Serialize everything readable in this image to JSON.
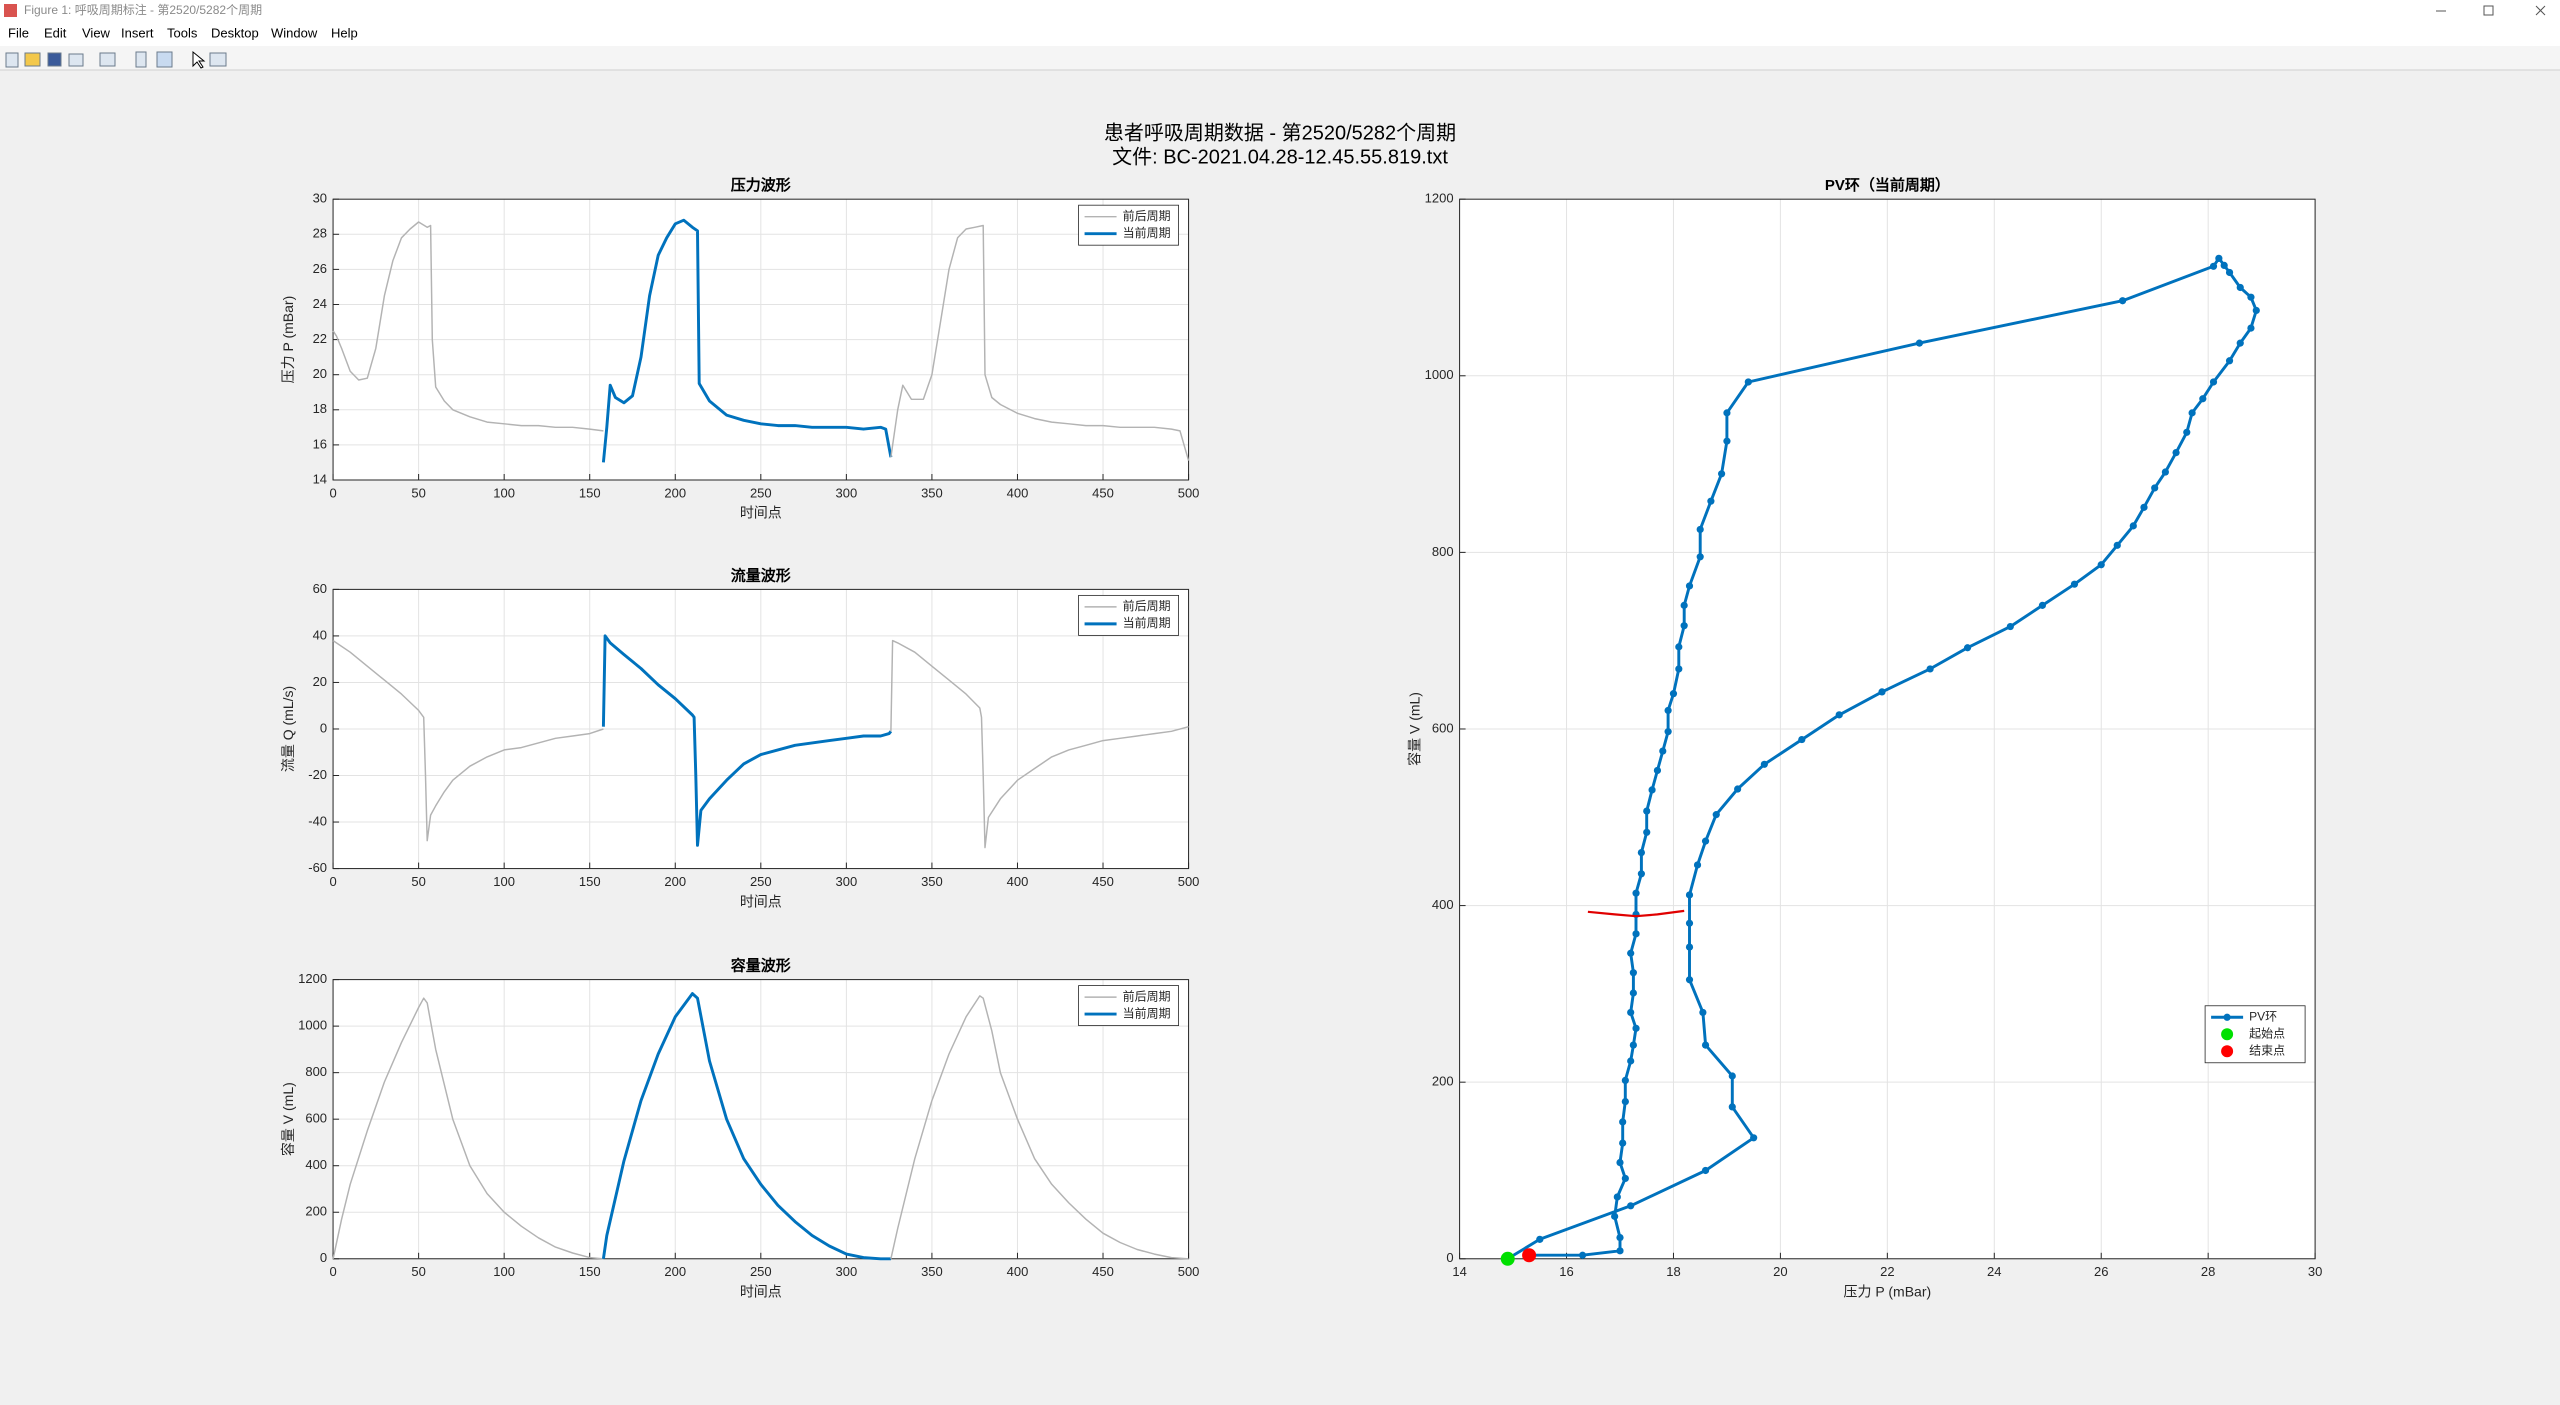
{
  "window": {
    "title": "Figure 1: 呼吸周期标注 - 第2520/5282个周期",
    "menu": [
      "File",
      "Edit",
      "View",
      "Insert",
      "Tools",
      "Desktop",
      "Window",
      "Help"
    ]
  },
  "figure_title": [
    "患者呼吸周期数据 - 第2520/5282个周期",
    "文件: BC-2021.04.28-12.45.55.819.txt"
  ],
  "chart_data": [
    {
      "type": "line",
      "title": "压力波形",
      "x_label": "时间点",
      "y_label": "压力 P (mBar)",
      "xlim": [
        0,
        500
      ],
      "xticks": [
        0,
        50,
        100,
        150,
        200,
        250,
        300,
        350,
        400,
        450,
        500
      ],
      "ylim": [
        14,
        30
      ],
      "yticks": [
        14,
        16,
        18,
        20,
        22,
        24,
        26,
        28,
        30
      ],
      "grid": true,
      "legend": "northeast",
      "series": [
        {
          "name": "前后周期",
          "color": "#b3b3b3",
          "linewidth": 1,
          "x": [
            0,
            2,
            5,
            10,
            15,
            20,
            25,
            30,
            35,
            40,
            45,
            50,
            55,
            57,
            58,
            60,
            65,
            70,
            80,
            90,
            100,
            110,
            120,
            130,
            140,
            150,
            158
          ],
          "values": [
            22.5,
            22.2,
            21.5,
            20.2,
            19.7,
            19.8,
            21.5,
            24.5,
            26.5,
            27.8,
            28.3,
            28.7,
            28.4,
            28.5,
            22,
            19.3,
            18.5,
            18,
            17.6,
            17.3,
            17.2,
            17.1,
            17.1,
            17,
            17,
            16.9,
            16.8
          ]
        },
        {
          "name": "当前周期",
          "color": "#0072bd",
          "linewidth": 2,
          "x": [
            158,
            160,
            162,
            165,
            170,
            175,
            180,
            185,
            190,
            195,
            200,
            205,
            210,
            213,
            214,
            220,
            230,
            240,
            250,
            260,
            270,
            280,
            290,
            300,
            310,
            320,
            323,
            326
          ],
          "values": [
            15,
            17,
            19.4,
            18.7,
            18.4,
            18.8,
            21,
            24.5,
            26.8,
            27.8,
            28.6,
            28.8,
            28.4,
            28.2,
            19.5,
            18.5,
            17.7,
            17.4,
            17.2,
            17.1,
            17.1,
            17,
            17,
            17,
            16.9,
            17,
            16.9,
            15.3
          ]
        },
        {
          "color": "#b3b3b3",
          "linewidth": 1,
          "x": [
            326,
            330,
            333,
            338,
            345,
            350,
            355,
            360,
            365,
            370,
            375,
            380,
            381,
            385,
            390,
            400,
            410,
            420,
            430,
            440,
            450,
            460,
            470,
            480,
            490,
            495,
            500
          ],
          "values": [
            15.3,
            18,
            19.4,
            18.6,
            18.6,
            20,
            23,
            26,
            27.8,
            28.3,
            28.4,
            28.5,
            20,
            18.7,
            18.3,
            17.8,
            17.5,
            17.3,
            17.2,
            17.1,
            17.1,
            17,
            17,
            17,
            16.9,
            16.8,
            15.1
          ]
        }
      ]
    },
    {
      "type": "line",
      "title": "流量波形",
      "x_label": "时间点",
      "y_label": "流量 Q (mL/s)",
      "xlim": [
        0,
        500
      ],
      "xticks": [
        0,
        50,
        100,
        150,
        200,
        250,
        300,
        350,
        400,
        450,
        500
      ],
      "ylim": [
        -60,
        60
      ],
      "yticks": [
        -60,
        -40,
        -20,
        0,
        20,
        40,
        60
      ],
      "grid": true,
      "legend": "northeast",
      "series": [
        {
          "name": "前后周期",
          "color": "#b3b3b3",
          "linewidth": 1,
          "x": [
            0,
            10,
            20,
            30,
            40,
            50,
            53,
            54,
            55,
            57,
            60,
            65,
            70,
            80,
            90,
            100,
            110,
            120,
            130,
            140,
            150,
            158
          ],
          "values": [
            38,
            33,
            27,
            21,
            15,
            8,
            5,
            -20,
            -48,
            -37,
            -33,
            -27,
            -22,
            -16,
            -12,
            -9,
            -8,
            -6,
            -4,
            -3,
            -2,
            0
          ]
        },
        {
          "name": "当前周期",
          "color": "#0072bd",
          "linewidth": 2,
          "x": [
            158,
            159,
            162,
            170,
            180,
            190,
            200,
            210,
            211,
            212,
            213,
            215,
            220,
            230,
            240,
            250,
            260,
            270,
            280,
            290,
            300,
            310,
            320,
            325,
            326
          ],
          "values": [
            1,
            40,
            37,
            32,
            26,
            19,
            13,
            6,
            5,
            -20,
            -50,
            -35,
            -30,
            -22,
            -15,
            -11,
            -9,
            -7,
            -6,
            -5,
            -4,
            -3,
            -3,
            -2,
            -1
          ]
        },
        {
          "color": "#b3b3b3",
          "linewidth": 1,
          "x": [
            326,
            327,
            330,
            340,
            350,
            360,
            370,
            378,
            379,
            380,
            381,
            383,
            390,
            400,
            410,
            420,
            430,
            440,
            450,
            460,
            470,
            480,
            490,
            500
          ],
          "values": [
            -1,
            38,
            37,
            33,
            27,
            21,
            15,
            9,
            5,
            -20,
            -51,
            -38,
            -30,
            -22,
            -17,
            -12,
            -9,
            -7,
            -5,
            -4,
            -3,
            -2,
            -1,
            1
          ]
        }
      ]
    },
    {
      "type": "line",
      "title": "容量波形",
      "x_label": "时间点",
      "y_label": "容量 V (mL)",
      "xlim": [
        0,
        500
      ],
      "xticks": [
        0,
        50,
        100,
        150,
        200,
        250,
        300,
        350,
        400,
        450,
        500
      ],
      "ylim": [
        0,
        1200
      ],
      "yticks": [
        0,
        200,
        400,
        600,
        800,
        1000,
        1200
      ],
      "grid": true,
      "legend": "northeast",
      "series": [
        {
          "name": "前后周期",
          "color": "#b3b3b3",
          "linewidth": 1,
          "x": [
            0,
            5,
            10,
            20,
            30,
            40,
            50,
            53,
            55,
            60,
            70,
            80,
            90,
            100,
            110,
            120,
            130,
            140,
            150,
            158
          ],
          "values": [
            0,
            170,
            320,
            550,
            760,
            930,
            1080,
            1120,
            1100,
            900,
            600,
            400,
            280,
            200,
            140,
            90,
            50,
            25,
            5,
            0
          ]
        },
        {
          "name": "当前周期",
          "color": "#0072bd",
          "linewidth": 2,
          "x": [
            158,
            160,
            170,
            180,
            190,
            200,
            210,
            213,
            220,
            230,
            240,
            250,
            260,
            270,
            280,
            290,
            300,
            310,
            320,
            326
          ],
          "values": [
            0,
            100,
            420,
            680,
            880,
            1040,
            1140,
            1120,
            850,
            600,
            430,
            320,
            230,
            160,
            100,
            55,
            20,
            5,
            0,
            0
          ]
        },
        {
          "color": "#b3b3b3",
          "linewidth": 1,
          "x": [
            326,
            330,
            340,
            350,
            360,
            370,
            378,
            380,
            385,
            390,
            400,
            410,
            420,
            430,
            440,
            450,
            460,
            470,
            480,
            490,
            500
          ],
          "values": [
            0,
            130,
            430,
            680,
            880,
            1040,
            1130,
            1120,
            980,
            800,
            600,
            430,
            320,
            240,
            170,
            110,
            70,
            40,
            20,
            5,
            0
          ]
        }
      ]
    },
    {
      "type": "line",
      "title": "PV环（当前周期）",
      "x_label": "压力 P (mBar)",
      "y_label": "容量 V (mL)",
      "xlim": [
        14,
        30
      ],
      "xticks": [
        14,
        16,
        18,
        20,
        22,
        24,
        26,
        28,
        30
      ],
      "ylim": [
        0,
        1200
      ],
      "yticks": [
        0,
        200,
        400,
        600,
        800,
        1000,
        1200
      ],
      "grid": true,
      "legend": "southeast",
      "series": [
        {
          "name": "PV环",
          "color": "#0072bd",
          "linewidth": 2,
          "marker": "line-marker",
          "x": [
            14.9,
            15.5,
            17.2,
            18.6,
            19.5,
            19.1,
            19.1,
            18.6,
            18.55,
            18.3,
            18.3,
            18.3,
            18.3,
            18.45,
            18.6,
            18.8,
            19.2,
            19.7,
            20.4,
            21.1,
            21.9,
            22.8,
            23.5,
            24.3,
            24.9,
            25.5,
            26.0,
            26.3,
            26.6,
            26.8,
            27.0,
            27.2,
            27.4,
            27.6,
            27.7,
            27.9,
            28.1,
            28.4,
            28.6,
            28.8,
            28.9,
            28.8,
            28.6,
            28.4,
            28.3,
            28.2,
            28.1,
            26.4,
            22.6,
            19.4,
            19.0,
            19.0,
            18.9,
            18.7,
            18.5,
            18.5,
            18.3,
            18.2,
            18.2,
            18.1,
            18.1,
            18.0,
            17.9,
            17.9,
            17.8,
            17.7,
            17.6,
            17.5,
            17.5,
            17.4,
            17.4,
            17.3,
            17.3,
            17.3,
            17.2,
            17.25,
            17.25,
            17.2,
            17.3,
            17.25,
            17.2,
            17.1,
            17.1,
            17.05,
            17.05,
            17.0,
            17.1,
            16.95,
            16.9,
            17.0,
            17.0,
            16.3,
            15.3
          ],
          "values": [
            0,
            22,
            60,
            100,
            137,
            172,
            207,
            242,
            279,
            316,
            353,
            380,
            412,
            446,
            473,
            503,
            532,
            560,
            588,
            616,
            642,
            668,
            692,
            716,
            740,
            764,
            786,
            808,
            830,
            851,
            873,
            891,
            913,
            936,
            958,
            974,
            993,
            1017,
            1037,
            1054,
            1074,
            1089,
            1100,
            1117,
            1125,
            1133,
            1124,
            1085,
            1037,
            993,
            958,
            926,
            889,
            858,
            826,
            795,
            762,
            740,
            717,
            693,
            668,
            640,
            621,
            597,
            575,
            553,
            531,
            507,
            483,
            460,
            436,
            414,
            390,
            368,
            346,
            324,
            301,
            279,
            261,
            242,
            224,
            202,
            178,
            155,
            131,
            109,
            91,
            70,
            48,
            24,
            9,
            4,
            4
          ]
        },
        {
          "name": "起始点",
          "color": "#00e000",
          "marker": "dot",
          "x": [
            14.9
          ],
          "values": [
            0
          ]
        },
        {
          "name": "结束点",
          "color": "#ff0000",
          "marker": "dot",
          "x": [
            15.3
          ],
          "values": [
            4
          ]
        },
        {
          "color": "#e00000",
          "linewidth": 1.5,
          "x": [
            16.4,
            16.9,
            17.3,
            17.7,
            18.2
          ],
          "values": [
            393,
            390,
            388,
            390,
            394
          ]
        }
      ]
    }
  ]
}
